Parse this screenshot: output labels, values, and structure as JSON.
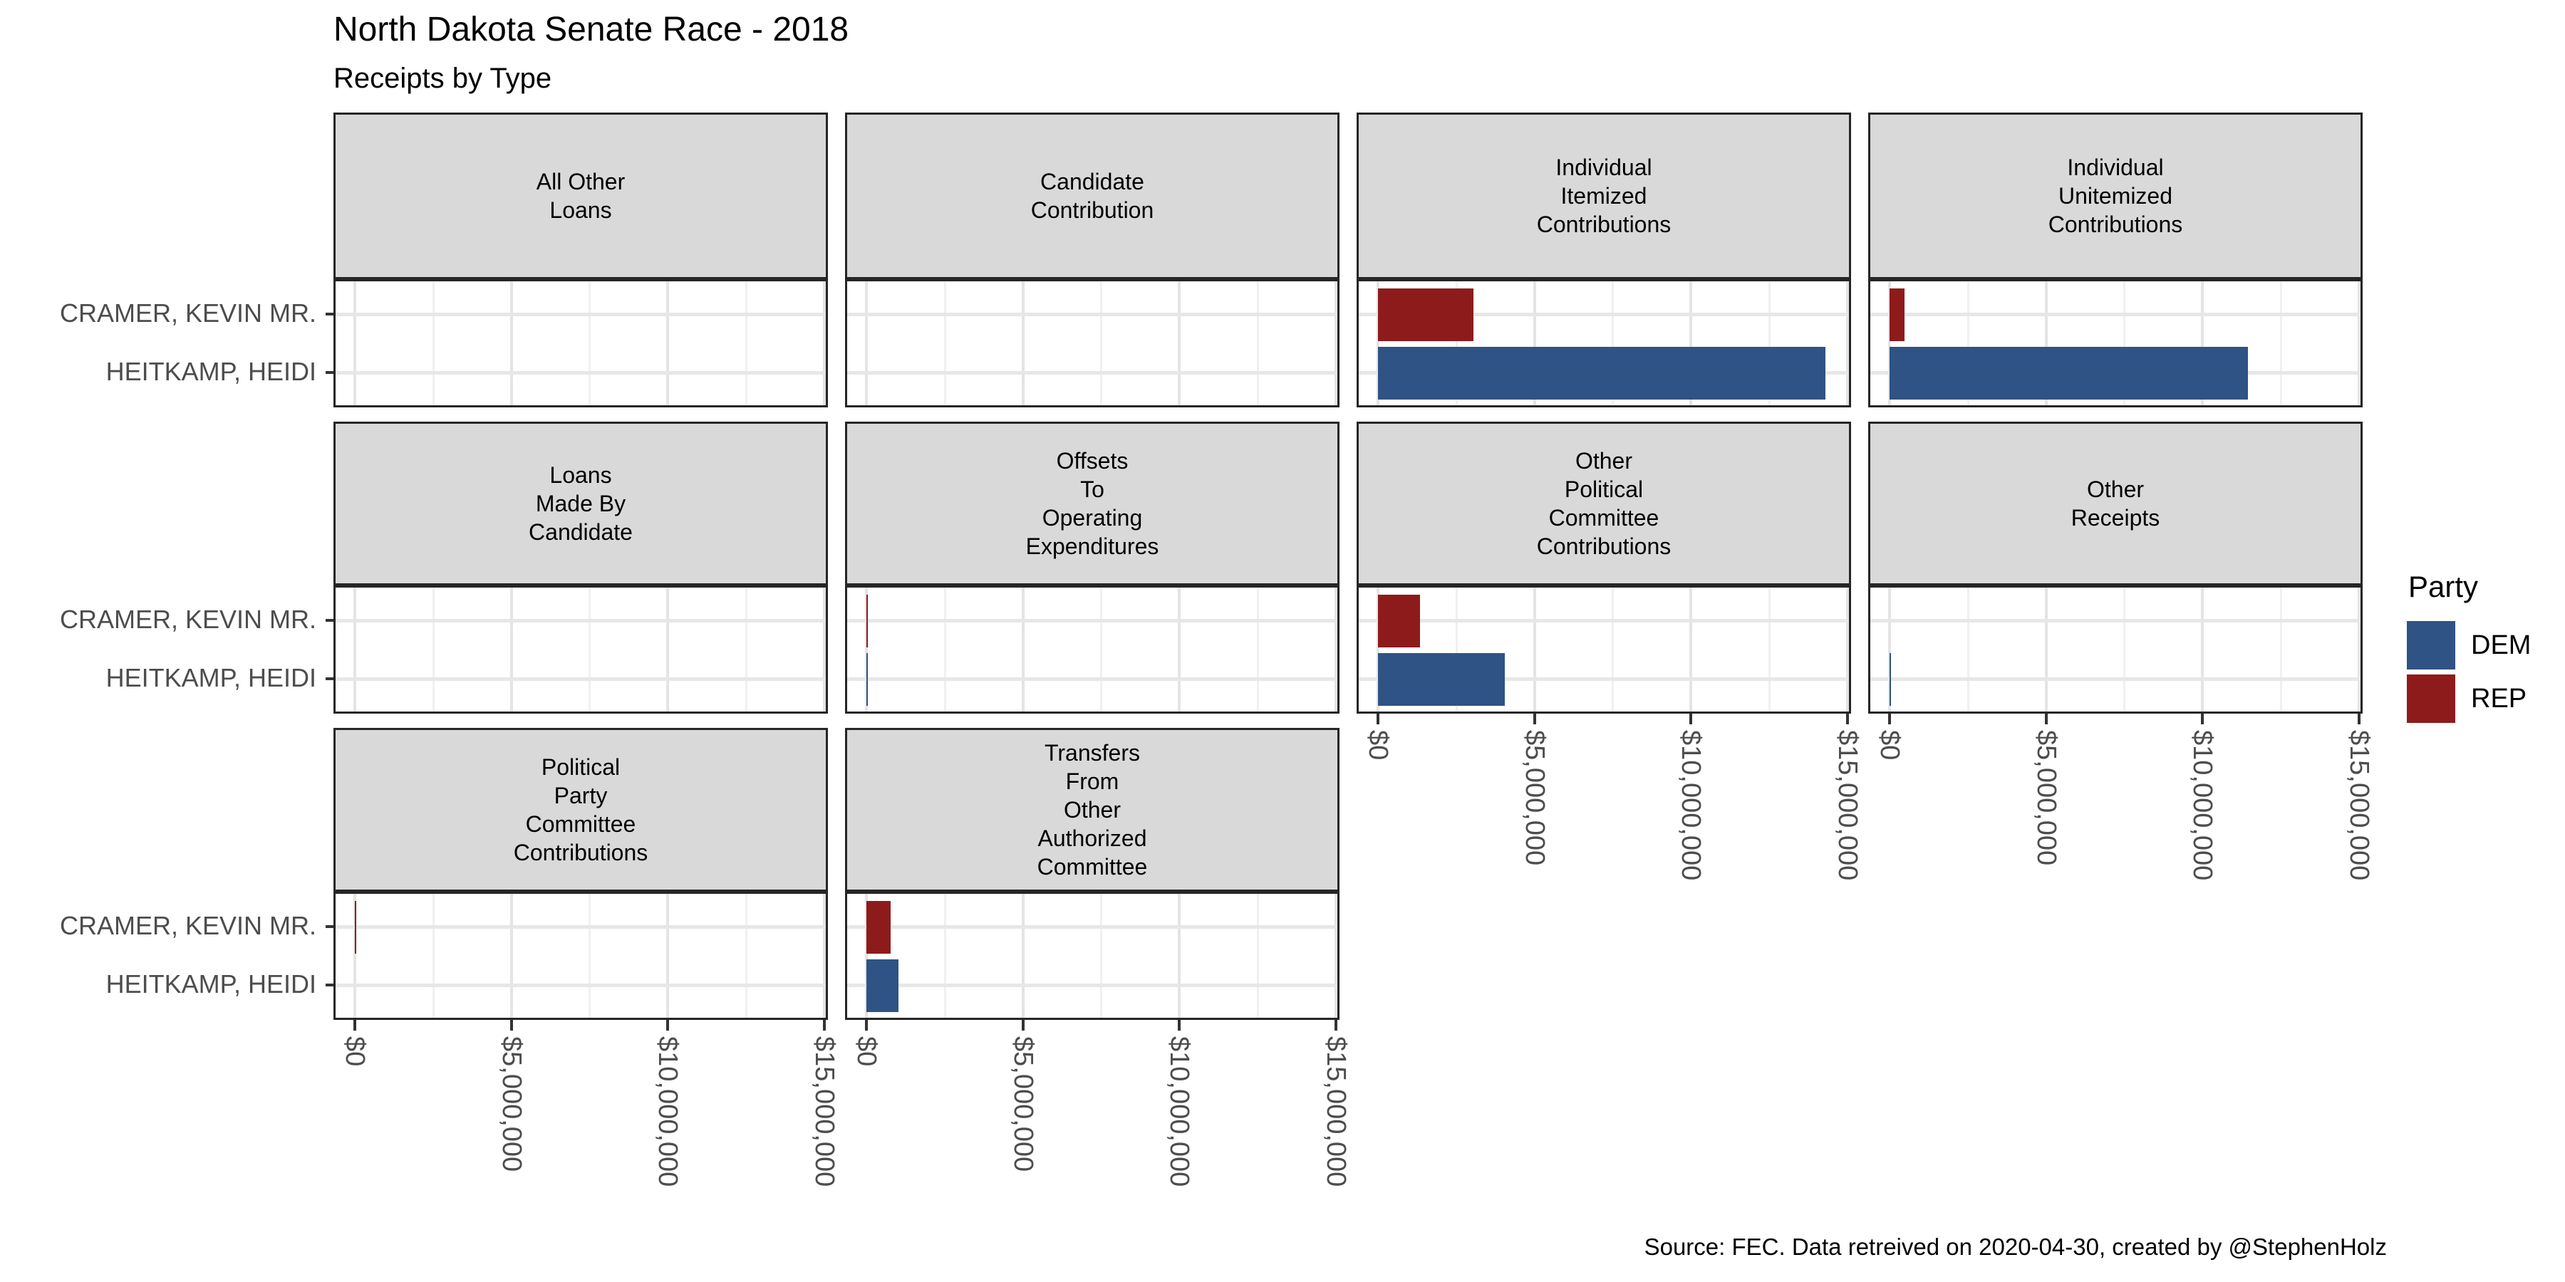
{
  "title": "North Dakota Senate Race - 2018",
  "subtitle": "Receipts by Type",
  "caption": "Source: FEC. Data retreived on 2020-04-30, created by @StephenHolz",
  "legend": {
    "title": "Party",
    "entries": [
      {
        "label": "DEM",
        "color": "#2E5384"
      },
      {
        "label": "REP",
        "color": "#8E1B1B"
      }
    ]
  },
  "colors": {
    "dem_blue": "#2E5384",
    "rep_red": "#8E1B1B",
    "strip_gray": "#d9d9d9",
    "border_dark": "#262626",
    "axis_text_gray": "#4d4d4d"
  },
  "chart_data": {
    "type": "bar",
    "orientation": "horizontal",
    "title": "North Dakota Senate Race - 2018",
    "subtitle": "Receipts by Type",
    "y_categories": [
      "CRAMER, KEVIN MR.",
      "HEITKAMP, HEIDI"
    ],
    "category_party": {
      "CRAMER, KEVIN MR.": "REP",
      "HEITKAMP, HEIDI": "DEM"
    },
    "x_axis": {
      "tick_labels": [
        "$0",
        "$5,000,000",
        "$10,000,000",
        "$15,000,000"
      ],
      "tick_values": [
        0,
        5000000,
        10000000,
        15000000
      ],
      "range": [
        0,
        15000000
      ],
      "minor_gridlines_every": 2500000,
      "grid": true
    },
    "legend_position": "right",
    "facets": [
      {
        "title": "All Other\nLoans",
        "row": 0,
        "col": 0,
        "values": {
          "REP": 0,
          "DEM": 0
        }
      },
      {
        "title": "Candidate\nContribution",
        "row": 0,
        "col": 1,
        "values": {
          "REP": 0,
          "DEM": 0
        }
      },
      {
        "title": "Individual\nItemized\nContributions",
        "row": 0,
        "col": 2,
        "values": {
          "REP": 3050000,
          "DEM": 14300000
        }
      },
      {
        "title": "Individual\nUnitemized\nContributions",
        "row": 0,
        "col": 3,
        "values": {
          "REP": 480000,
          "DEM": 11450000
        }
      },
      {
        "title": "Loans\nMade By\nCandidate",
        "row": 1,
        "col": 0,
        "values": {
          "REP": 0,
          "DEM": 0
        }
      },
      {
        "title": "Offsets\nTo\nOperating\nExpenditures",
        "row": 1,
        "col": 1,
        "values": {
          "REP": 21000,
          "DEM": 28000
        }
      },
      {
        "title": "Other\nPolitical\nCommittee\nContributions",
        "row": 1,
        "col": 2,
        "values": {
          "REP": 1340000,
          "DEM": 4050000
        }
      },
      {
        "title": "Other\nReceipts",
        "row": 1,
        "col": 3,
        "values": {
          "REP": 0,
          "DEM": 46000
        }
      },
      {
        "title": "Political\nParty\nCommittee\nContributions",
        "row": 2,
        "col": 0,
        "values": {
          "REP": 45000,
          "DEM": 0
        }
      },
      {
        "title": "Transfers\nFrom\nOther\nAuthorized\nCommittee",
        "row": 2,
        "col": 1,
        "values": {
          "REP": 780000,
          "DEM": 1020000
        }
      }
    ]
  }
}
